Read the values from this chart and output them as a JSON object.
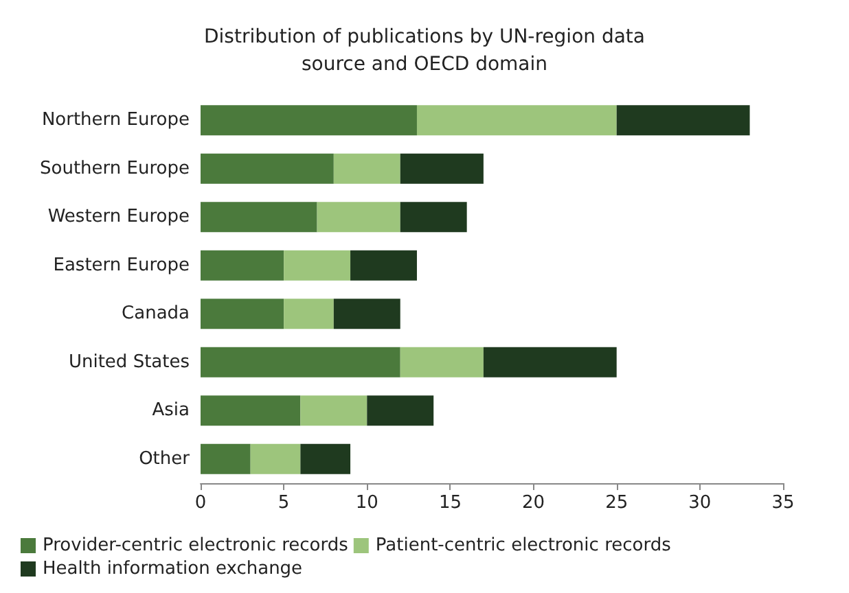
{
  "chart_data": {
    "type": "bar",
    "title": "Distribution of publications by UN-region data\nsource and OECD domain",
    "orientation": "horizontal",
    "stacked": true,
    "categories": [
      "Northern Europe",
      "Southern Europe",
      "Western Europe",
      "Eastern Europe",
      "Canada",
      "United States",
      "Asia",
      "Other"
    ],
    "series": [
      {
        "name": "Provider-centric electronic records",
        "color": "#4b7a3c",
        "values": [
          13,
          8,
          7,
          5,
          5,
          12,
          6,
          3
        ]
      },
      {
        "name": "Patient-centric electronic records",
        "color": "#9dc57c",
        "values": [
          12,
          4,
          5,
          4,
          3,
          5,
          4,
          3
        ]
      },
      {
        "name": "Health information exchange",
        "color": "#1f3a1f",
        "values": [
          8,
          5,
          4,
          4,
          4,
          8,
          4,
          3
        ]
      }
    ],
    "xlim": [
      0,
      35
    ],
    "xticks": [
      0,
      5,
      10,
      15,
      20,
      25,
      30,
      35
    ],
    "grid": false,
    "legend": "bottom"
  }
}
